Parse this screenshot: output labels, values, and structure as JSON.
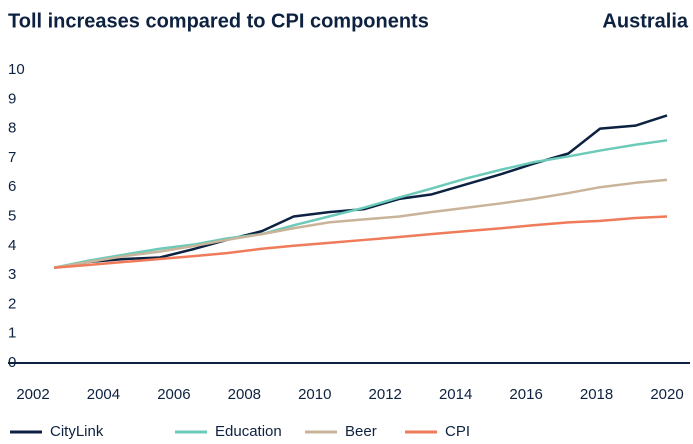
{
  "chart_data": {
    "type": "line",
    "title": "Toll increases compared to CPI components",
    "subtitle": "Australia",
    "x": [
      2002.6,
      2003.6,
      2004.6,
      2005.6,
      2006.6,
      2007.5,
      2008.5,
      2009.4,
      2010.4,
      2011.4,
      2012.4,
      2013.3,
      2014.3,
      2015.3,
      2016.2,
      2017.2,
      2018.1,
      2019.1,
      2020
    ],
    "series": [
      {
        "name": "CityLink",
        "color": "#0d2240",
        "values": [
          3.25,
          3.45,
          3.55,
          3.6,
          3.9,
          4.2,
          4.5,
          5.0,
          5.15,
          5.25,
          5.6,
          5.75,
          6.1,
          6.45,
          6.8,
          7.15,
          8.0,
          8.1,
          8.45
        ]
      },
      {
        "name": "Education",
        "color": "#6ccab9",
        "values": [
          3.25,
          3.5,
          3.7,
          3.9,
          4.05,
          4.25,
          4.4,
          4.7,
          5.0,
          5.3,
          5.65,
          5.95,
          6.3,
          6.6,
          6.85,
          7.05,
          7.25,
          7.45,
          7.6
        ]
      },
      {
        "name": "Beer",
        "color": "#c9b49a",
        "values": [
          3.25,
          3.45,
          3.65,
          3.8,
          4.0,
          4.2,
          4.4,
          4.6,
          4.8,
          4.9,
          5.0,
          5.15,
          5.3,
          5.45,
          5.6,
          5.8,
          6.0,
          6.15,
          6.25
        ]
      },
      {
        "name": "CPI",
        "color": "#ef7b5a",
        "values": [
          3.25,
          3.35,
          3.45,
          3.55,
          3.65,
          3.75,
          3.9,
          4.0,
          4.1,
          4.2,
          4.3,
          4.4,
          4.5,
          4.6,
          4.7,
          4.8,
          4.85,
          4.95,
          5.0
        ]
      }
    ],
    "xlim": [
      2002,
      2020
    ],
    "xticks": [
      2002,
      2004,
      2006,
      2008,
      2010,
      2012,
      2014,
      2016,
      2018,
      2020
    ],
    "ylim": [
      0,
      10
    ],
    "yticks": [
      0,
      1,
      2,
      3,
      4,
      5,
      6,
      7,
      8,
      9,
      10
    ],
    "grid": false,
    "legend": "bottom"
  }
}
